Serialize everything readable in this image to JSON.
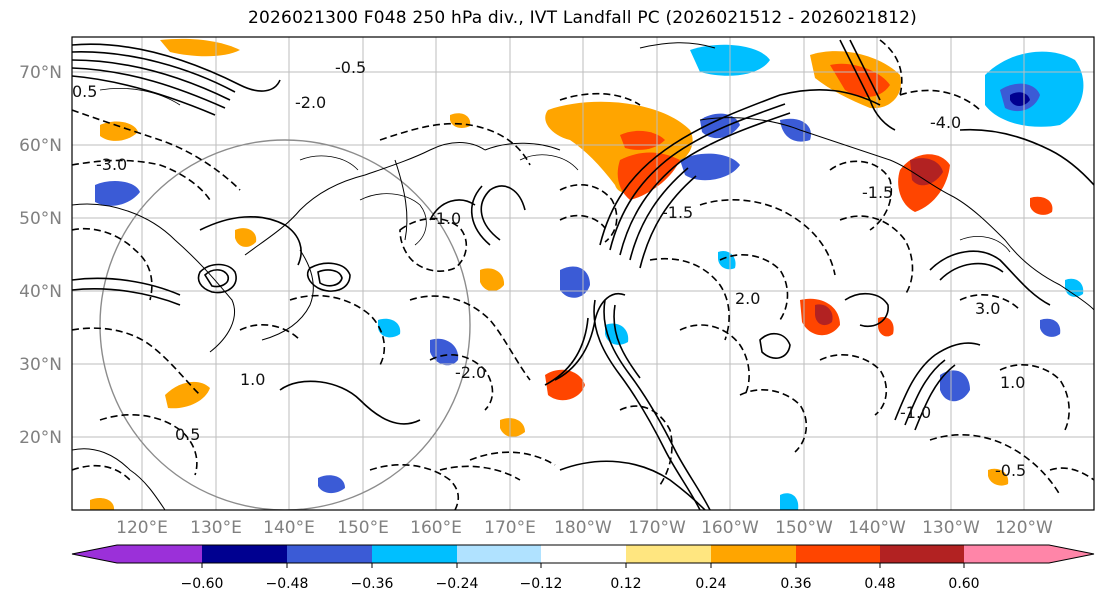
{
  "title": "2026021300 F048 250 hPa div., IVT Landfall PC (2026021512 - 2026021812)",
  "map": {
    "lat_ticks": [
      "70°N",
      "60°N",
      "50°N",
      "40°N",
      "30°N",
      "20°N"
    ],
    "lon_ticks": [
      "120°E",
      "130°E",
      "140°E",
      "150°E",
      "160°E",
      "170°E",
      "180°W",
      "170°W",
      "160°W",
      "150°W",
      "140°W",
      "130°W",
      "120°W"
    ],
    "contour_labels": [
      "-0.5",
      "0.5",
      "-1.0",
      "1.0",
      "-1.5",
      "-2.0",
      "2.0",
      "3.0",
      "-3.0",
      "-4.0",
      "-0.5",
      "0.5",
      "-1.0",
      "1.0",
      "-1.5",
      "-2.0"
    ]
  },
  "colorbar": {
    "ticks": [
      "−0.60",
      "−0.48",
      "−0.36",
      "−0.24",
      "−0.12",
      "0.12",
      "0.24",
      "0.36",
      "0.48",
      "0.60"
    ],
    "colors": [
      "#9b30d9",
      "#000090",
      "#3b5bd6",
      "#00bfff",
      "#b0e2ff",
      "#ffffff",
      "#ffe680",
      "#ffa500",
      "#ff4500",
      "#b22222",
      "#ff85a8"
    ]
  }
}
